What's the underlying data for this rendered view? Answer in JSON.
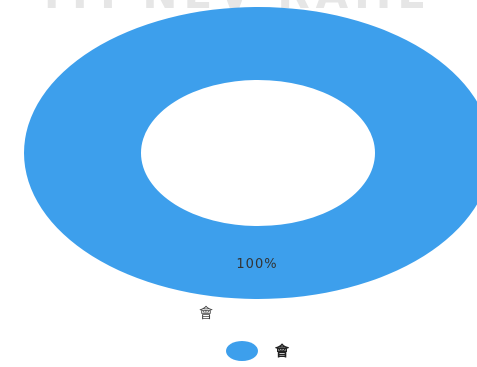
{
  "chart_data": {
    "type": "pie",
    "title": "",
    "slices": [
      {
        "label": "會",
        "value": 100,
        "percent_label": "100%",
        "color": "#3d9fec"
      }
    ],
    "legend": {
      "placement": "bottom-center",
      "entries": [
        {
          "label": "會",
          "color": "#3d9fec"
        }
      ]
    },
    "banner_text_fragment": "ITI NEV RAIIE",
    "banner_color": "#e6e6e6"
  }
}
